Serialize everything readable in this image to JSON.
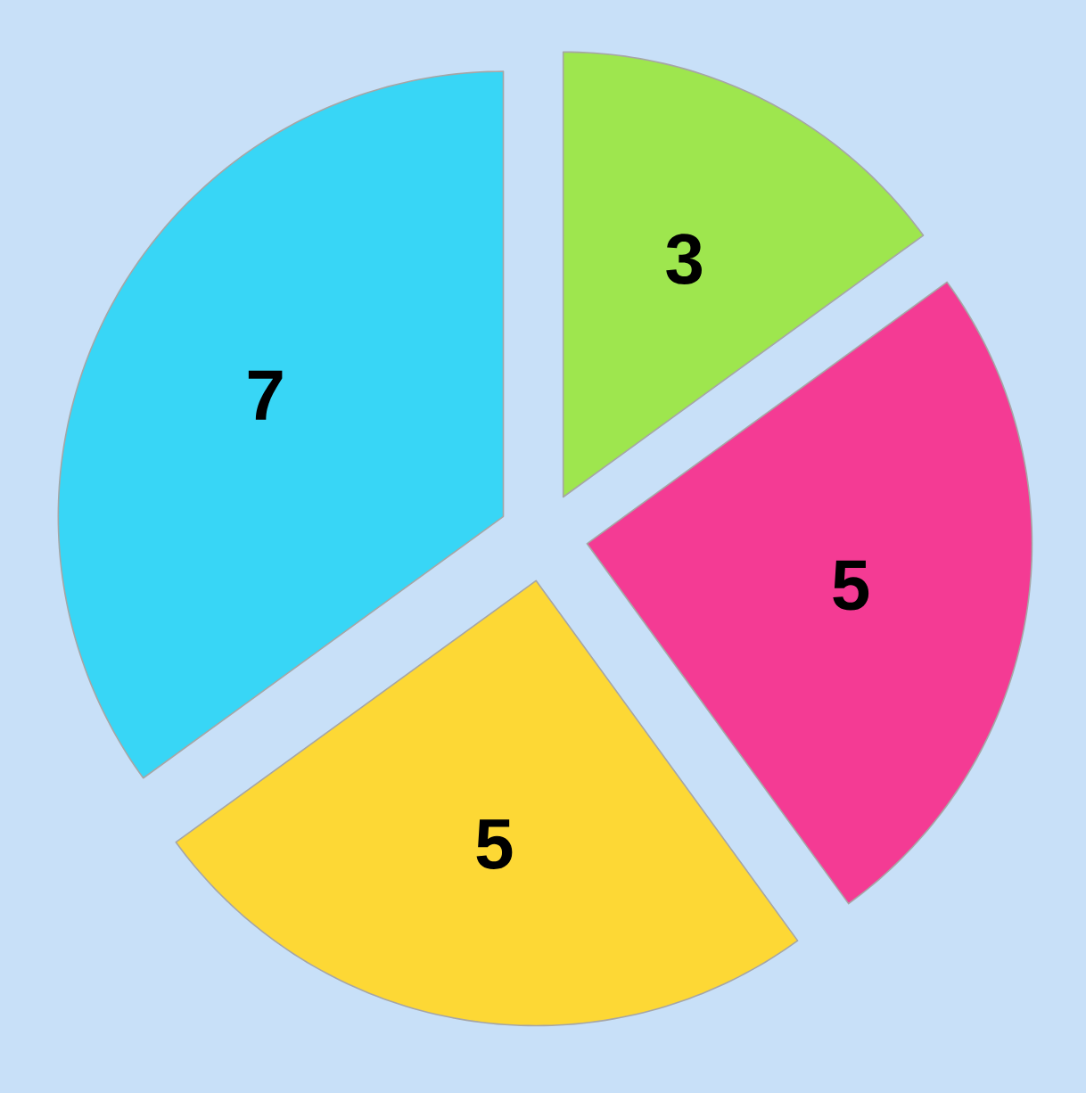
{
  "chart_data": {
    "type": "pie",
    "categories": [
      null,
      null,
      null,
      null
    ],
    "values": [
      3,
      5,
      5,
      7
    ],
    "value_labels": [
      "3",
      "5",
      "5",
      "7"
    ],
    "colors": [
      "#9ee64e",
      "#f43b94",
      "#fdd835",
      "#38d6f6"
    ],
    "data_labels": true
  }
}
